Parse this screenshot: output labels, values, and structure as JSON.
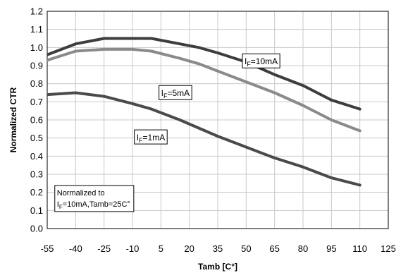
{
  "chart_data": {
    "type": "line",
    "title": "",
    "xlabel": "Tamb [C°]",
    "ylabel": "Normalized CTR",
    "xlim": [
      -55,
      125
    ],
    "ylim": [
      0.0,
      1.2
    ],
    "xticks": [
      -55,
      -40,
      -25,
      -10,
      5,
      20,
      35,
      50,
      65,
      80,
      95,
      110,
      125
    ],
    "xtick_labels": [
      "-55",
      "-40",
      "-25",
      "-10",
      "5",
      "20",
      "35",
      "50",
      "65",
      "80",
      "95",
      "110",
      "125"
    ],
    "yticks": [
      0.0,
      0.1,
      0.2,
      0.3,
      0.4,
      0.5,
      0.6,
      0.7,
      0.8,
      0.9,
      1.0,
      1.1,
      1.2
    ],
    "ytick_labels": [
      "0.0",
      "0.1",
      "0.2",
      "0.3",
      "0.4",
      "0.5",
      "0.6",
      "0.7",
      "0.8",
      "0.9",
      "1.0",
      "1.1",
      "1.2"
    ],
    "grid": true,
    "series": [
      {
        "name": "IF=10mA",
        "color": "#3d3d3d",
        "x": [
          -55,
          -40,
          -25,
          -10,
          0,
          15,
          25,
          35,
          50,
          65,
          80,
          95,
          110
        ],
        "y": [
          0.96,
          1.02,
          1.05,
          1.05,
          1.05,
          1.02,
          1.0,
          0.97,
          0.92,
          0.85,
          0.79,
          0.71,
          0.66
        ]
      },
      {
        "name": "IF=5mA",
        "color": "#8a8a8a",
        "x": [
          -55,
          -40,
          -25,
          -10,
          0,
          15,
          25,
          35,
          50,
          65,
          80,
          95,
          110
        ],
        "y": [
          0.93,
          0.98,
          0.99,
          0.99,
          0.98,
          0.94,
          0.91,
          0.87,
          0.81,
          0.75,
          0.68,
          0.6,
          0.54
        ]
      },
      {
        "name": "IF=1mA",
        "color": "#4a4a4a",
        "x": [
          -55,
          -40,
          -25,
          -10,
          0,
          15,
          35,
          50,
          65,
          80,
          95,
          110
        ],
        "y": [
          0.74,
          0.75,
          0.73,
          0.69,
          0.66,
          0.6,
          0.51,
          0.45,
          0.39,
          0.34,
          0.28,
          0.24
        ]
      }
    ],
    "annotations": [
      {
        "series": 0,
        "sub": "F",
        "suffix": "=10mA",
        "at_x": 48,
        "at_y": 0.965
      },
      {
        "series": 1,
        "sub": "F",
        "suffix": "=5mA",
        "at_x": 4,
        "at_y": 0.79
      },
      {
        "series": 2,
        "sub": "F",
        "suffix": "=1mA",
        "at_x": -9,
        "at_y": 0.545
      }
    ],
    "note": {
      "line1": "Normalized to",
      "line2_sub": "F",
      "line2_suffix": "=10mA,Tamb=25C°",
      "at_x": -51,
      "at_y": 0.238
    }
  }
}
